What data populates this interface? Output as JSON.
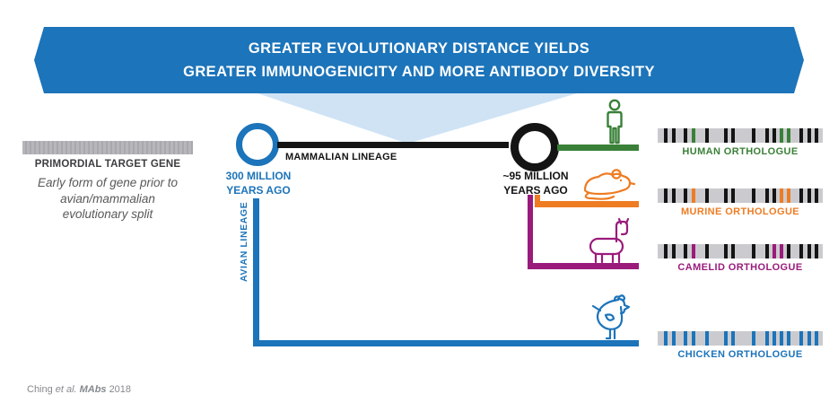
{
  "banner": {
    "line1": "GREATER EVOLUTIONARY DISTANCE YIELDS",
    "line2": "GREATER IMMUNOGENICITY AND MORE ANTIBODY DIVERSITY"
  },
  "primordial": {
    "title": "PRIMORDIAL TARGET GENE",
    "desc_line1": "Early form of gene prior to",
    "desc_line2": "avian/mammalian",
    "desc_line3": "evolutionary split"
  },
  "tree": {
    "node300": {
      "line1": "300 MILLION",
      "line2": "YEARS AGO"
    },
    "node95": {
      "line1": "~95 MILLION",
      "line2": "YEARS AGO"
    },
    "mammalian_label": "MAMMALIAN LINEAGE",
    "avian_label": "AVIAN LINEAGE"
  },
  "orthologues": [
    {
      "id": "human",
      "label": "HUMAN ORTHOLOGUE",
      "color": "#3a8038",
      "icon": "human-icon",
      "stripes": [
        {
          "p": 4,
          "c": "k"
        },
        {
          "p": 8.5,
          "c": "k"
        },
        {
          "p": 16,
          "c": "k"
        },
        {
          "p": 20.5,
          "c": "a"
        },
        {
          "p": 29,
          "c": "k"
        },
        {
          "p": 40,
          "c": "k"
        },
        {
          "p": 44.5,
          "c": "k"
        },
        {
          "p": 57,
          "c": "k"
        },
        {
          "p": 65,
          "c": "k"
        },
        {
          "p": 69.5,
          "c": "k"
        },
        {
          "p": 74,
          "c": "a"
        },
        {
          "p": 78.5,
          "c": "a"
        },
        {
          "p": 86,
          "c": "k"
        },
        {
          "p": 90.5,
          "c": "k"
        },
        {
          "p": 95,
          "c": "k"
        }
      ]
    },
    {
      "id": "murine",
      "label": "MURINE ORTHOLOGUE",
      "color": "#ee7c23",
      "icon": "mouse-icon",
      "stripes": [
        {
          "p": 4,
          "c": "k"
        },
        {
          "p": 8.5,
          "c": "k"
        },
        {
          "p": 16,
          "c": "k"
        },
        {
          "p": 20.5,
          "c": "a"
        },
        {
          "p": 29,
          "c": "k"
        },
        {
          "p": 40,
          "c": "k"
        },
        {
          "p": 44.5,
          "c": "k"
        },
        {
          "p": 57,
          "c": "k"
        },
        {
          "p": 65,
          "c": "k"
        },
        {
          "p": 69.5,
          "c": "k"
        },
        {
          "p": 74,
          "c": "a"
        },
        {
          "p": 78.5,
          "c": "a"
        },
        {
          "p": 86,
          "c": "k"
        },
        {
          "p": 90.5,
          "c": "k"
        },
        {
          "p": 95,
          "c": "k"
        }
      ]
    },
    {
      "id": "camelid",
      "label": "CAMELID ORTHOLOGUE",
      "color": "#9a1b7c",
      "icon": "llama-icon",
      "stripes": [
        {
          "p": 4,
          "c": "k"
        },
        {
          "p": 8.5,
          "c": "k"
        },
        {
          "p": 16,
          "c": "k"
        },
        {
          "p": 20.5,
          "c": "a"
        },
        {
          "p": 29,
          "c": "k"
        },
        {
          "p": 40,
          "c": "k"
        },
        {
          "p": 44.5,
          "c": "k"
        },
        {
          "p": 57,
          "c": "k"
        },
        {
          "p": 65,
          "c": "k"
        },
        {
          "p": 69.5,
          "c": "a"
        },
        {
          "p": 74,
          "c": "a"
        },
        {
          "p": 78.5,
          "c": "k"
        },
        {
          "p": 86,
          "c": "k"
        },
        {
          "p": 90.5,
          "c": "k"
        },
        {
          "p": 95,
          "c": "k"
        }
      ]
    },
    {
      "id": "chicken",
      "label": "CHICKEN ORTHOLOGUE",
      "color": "#1c74ba",
      "icon": "chicken-icon",
      "stripes": [
        {
          "p": 4,
          "c": "a"
        },
        {
          "p": 8.5,
          "c": "a"
        },
        {
          "p": 16,
          "c": "a"
        },
        {
          "p": 20.5,
          "c": "a"
        },
        {
          "p": 29,
          "c": "a"
        },
        {
          "p": 40,
          "c": "a"
        },
        {
          "p": 44.5,
          "c": "a"
        },
        {
          "p": 57,
          "c": "a"
        },
        {
          "p": 65,
          "c": "a"
        },
        {
          "p": 69.5,
          "c": "a"
        },
        {
          "p": 74,
          "c": "a"
        },
        {
          "p": 78.5,
          "c": "a"
        },
        {
          "p": 86,
          "c": "a"
        },
        {
          "p": 90.5,
          "c": "a"
        },
        {
          "p": 95,
          "c": "a"
        }
      ]
    }
  ],
  "citation": {
    "author": "Ching",
    "et_al": "et al.",
    "journal": "MAbs",
    "year": "2018"
  },
  "colors": {
    "banner_blue": "#1c74ba",
    "funnel_blue": "#cfe3f5",
    "lineage_blue": "#1c74ba",
    "lineage_black": "#141414",
    "human_green": "#3a8038",
    "murine_orange": "#ee7c23",
    "camelid_purple": "#9a1b7c",
    "chicken_blue": "#1c74ba",
    "stripe_black": "#141414",
    "gene_bar_gray": "#cbcbcf",
    "primordial_gray": "#b0b0b4",
    "citation_gray": "#85898d"
  }
}
